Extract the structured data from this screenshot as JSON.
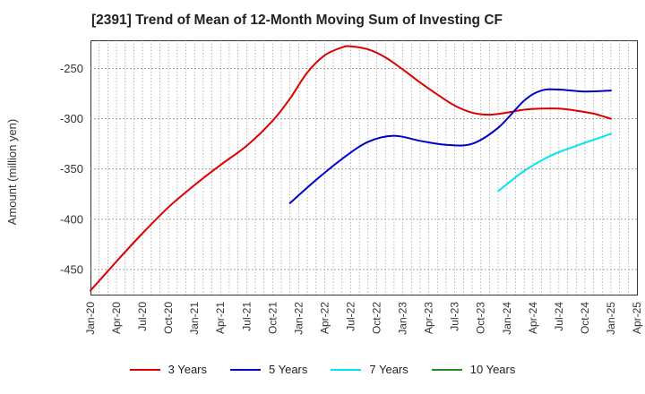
{
  "chart_data": {
    "type": "line",
    "title": "[2391]  Trend of Mean of 12-Month Moving Sum of Investing CF",
    "ylabel": "Amount (million yen)",
    "xlabel": "",
    "x_ticks": [
      "Jan-20",
      "Apr-20",
      "Jul-20",
      "Oct-20",
      "Jan-21",
      "Apr-21",
      "Jul-21",
      "Oct-21",
      "Jan-22",
      "Apr-22",
      "Jul-22",
      "Oct-22",
      "Jan-23",
      "Apr-23",
      "Jul-23",
      "Oct-23",
      "Jan-24",
      "Apr-24",
      "Jul-24",
      "Oct-24",
      "Jan-25",
      "Apr-25"
    ],
    "y_ticks": [
      -250,
      -300,
      -350,
      -400,
      -450
    ],
    "ylim": [
      -475,
      -222
    ],
    "grid": true,
    "legend_position": "bottom",
    "series": [
      {
        "name": "3 Years",
        "color": "#dd0000",
        "points": [
          [
            "2020-01",
            -471
          ],
          [
            "2020-04",
            -442
          ],
          [
            "2020-07",
            -414
          ],
          [
            "2020-10",
            -388
          ],
          [
            "2021-01",
            -366
          ],
          [
            "2021-04",
            -346
          ],
          [
            "2021-07",
            -327
          ],
          [
            "2021-10",
            -302
          ],
          [
            "2021-12",
            -280
          ],
          [
            "2022-02",
            -254
          ],
          [
            "2022-04",
            -237
          ],
          [
            "2022-06",
            -229
          ],
          [
            "2022-07",
            -228
          ],
          [
            "2022-09",
            -231
          ],
          [
            "2022-11",
            -239
          ],
          [
            "2023-01",
            -251
          ],
          [
            "2023-03",
            -264
          ],
          [
            "2023-05",
            -276
          ],
          [
            "2023-07",
            -287
          ],
          [
            "2023-09",
            -294
          ],
          [
            "2023-11",
            -296
          ],
          [
            "2024-01",
            -294
          ],
          [
            "2024-03",
            -291
          ],
          [
            "2024-05",
            -290
          ],
          [
            "2024-07",
            -290
          ],
          [
            "2024-09",
            -292
          ],
          [
            "2024-11",
            -295
          ],
          [
            "2025-01",
            -300
          ]
        ]
      },
      {
        "name": "5 Years",
        "color": "#0000cc",
        "points": [
          [
            "2021-12",
            -384
          ],
          [
            "2022-03",
            -361
          ],
          [
            "2022-06",
            -340
          ],
          [
            "2022-09",
            -323
          ],
          [
            "2022-12",
            -317
          ],
          [
            "2023-03",
            -322
          ],
          [
            "2023-06",
            -326
          ],
          [
            "2023-09",
            -325
          ],
          [
            "2023-12",
            -309
          ],
          [
            "2024-03",
            -282
          ],
          [
            "2024-05",
            -272
          ],
          [
            "2024-07",
            -271
          ],
          [
            "2024-10",
            -273
          ],
          [
            "2025-01",
            -272
          ]
        ]
      },
      {
        "name": "7 Years",
        "color": "#00e5ee",
        "points": [
          [
            "2023-12",
            -372
          ],
          [
            "2024-03",
            -352
          ],
          [
            "2024-06",
            -337
          ],
          [
            "2024-09",
            -327
          ],
          [
            "2024-12",
            -318
          ],
          [
            "2025-01",
            -315
          ]
        ]
      },
      {
        "name": "10 Years",
        "color": "#228b22",
        "points": []
      }
    ]
  }
}
